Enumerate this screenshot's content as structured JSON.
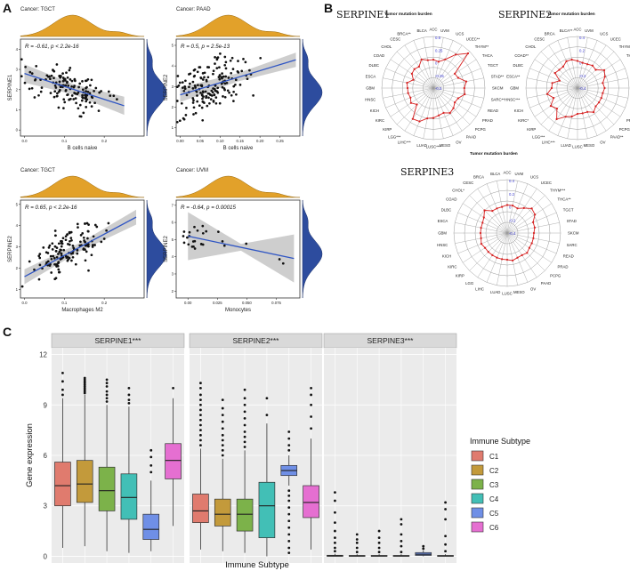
{
  "panel_labels": {
    "a": "A",
    "b": "B",
    "c": "C"
  },
  "colors": {
    "density": "#E2A12A",
    "density_side": "#2D4C9E",
    "fit": "#2F55C4",
    "band": "#BDBDBD",
    "radar_line": "#D62020",
    "radar_grid": "#9A9A9A"
  },
  "chart_data": [
    {
      "id": "scatter-tgct-bcells",
      "type": "scatter",
      "title": "Cancer: TGCT",
      "stat": "R = -0.61, p < 2.2e-16",
      "xlabel": "B cells naive",
      "ylabel": "SERPINE1",
      "xlim": [
        -0.01,
        0.3
      ],
      "ylim": [
        -0.3,
        4.5
      ],
      "xticks": [
        {
          "v": 0.0,
          "t": "0.0"
        },
        {
          "v": 0.1,
          "t": "0.1"
        },
        {
          "v": 0.2,
          "t": "0.2"
        }
      ],
      "yticks": [
        {
          "v": 0,
          "t": "0"
        },
        {
          "v": 1,
          "t": "1"
        },
        {
          "v": 2,
          "t": "2"
        },
        {
          "v": 3,
          "t": "3"
        },
        {
          "v": 4,
          "t": "4"
        }
      ],
      "fit": {
        "x": [
          0.0,
          0.25
        ],
        "y": [
          2.8,
          1.2
        ],
        "band": [
          0.25,
          0.45
        ]
      },
      "seed": 11,
      "n": 140,
      "xcenter": 0.11,
      "xspread": 0.07,
      "slope": -6.4,
      "intercept": 2.8,
      "noise": 0.7,
      "yclip": [
        0.0,
        4.1
      ]
    },
    {
      "id": "scatter-paad-bcells",
      "type": "scatter",
      "title": "Cancer: PAAD",
      "stat": "R = 0.5, p = 2.5e-13",
      "xlabel": "B cells naive",
      "ylabel": "SERPINE2",
      "xlim": [
        -0.01,
        0.3
      ],
      "ylim": [
        0.6,
        5.3
      ],
      "xticks": [
        {
          "v": 0.0,
          "t": "0.00"
        },
        {
          "v": 0.05,
          "t": "0.05"
        },
        {
          "v": 0.1,
          "t": "0.10"
        },
        {
          "v": 0.15,
          "t": "0.15"
        },
        {
          "v": 0.2,
          "t": "0.20"
        },
        {
          "v": 0.25,
          "t": "0.25"
        }
      ],
      "yticks": [
        {
          "v": 1,
          "t": "1"
        },
        {
          "v": 2,
          "t": "2"
        },
        {
          "v": 3,
          "t": "3"
        },
        {
          "v": 4,
          "t": "4"
        },
        {
          "v": 5,
          "t": "5"
        }
      ],
      "fit": {
        "x": [
          0.0,
          0.29
        ],
        "y": [
          2.6,
          4.3
        ],
        "band": [
          0.2,
          0.35
        ]
      },
      "seed": 23,
      "n": 170,
      "xcenter": 0.08,
      "xspread": 0.065,
      "slope": 6.0,
      "intercept": 2.6,
      "noise": 0.9,
      "yclip": [
        0.8,
        5.0
      ]
    },
    {
      "id": "scatter-tgct-macro",
      "type": "scatter",
      "title": "Cancer: TGCT",
      "stat": "R = 0.65, p < 2.2e-16",
      "xlabel": "Macrophages M2",
      "ylabel": "SERPINE2",
      "xlim": [
        -0.01,
        0.3
      ],
      "ylim": [
        0.6,
        5.2
      ],
      "xticks": [
        {
          "v": 0.0,
          "t": "0.0"
        },
        {
          "v": 0.1,
          "t": "0.1"
        },
        {
          "v": 0.2,
          "t": "0.2"
        }
      ],
      "yticks": [
        {
          "v": 1,
          "t": "1"
        },
        {
          "v": 2,
          "t": "2"
        },
        {
          "v": 3,
          "t": "3"
        },
        {
          "v": 4,
          "t": "4"
        },
        {
          "v": 5,
          "t": "5"
        }
      ],
      "fit": {
        "x": [
          0.0,
          0.28
        ],
        "y": [
          1.6,
          4.4
        ],
        "band": [
          0.2,
          0.35
        ]
      },
      "seed": 37,
      "n": 150,
      "xcenter": 0.1,
      "xspread": 0.06,
      "slope": 10.0,
      "intercept": 1.6,
      "noise": 0.75,
      "yclip": [
        0.8,
        5.0
      ]
    },
    {
      "id": "scatter-uvm-mono",
      "type": "scatter",
      "title": "Cancer: UVM",
      "stat": "R = -0.64, p = 0.00015",
      "xlabel": "Monocytes",
      "ylabel": "SERPINE2",
      "xlim": [
        -0.01,
        0.095
      ],
      "ylim": [
        1.6,
        7.3
      ],
      "xticks": [
        {
          "v": 0.0,
          "t": "0.00"
        },
        {
          "v": 0.025,
          "t": "0.025"
        },
        {
          "v": 0.05,
          "t": "0.050"
        },
        {
          "v": 0.075,
          "t": "0.075"
        }
      ],
      "yticks": [
        {
          "v": 2,
          "t": "2"
        },
        {
          "v": 3,
          "t": "3"
        },
        {
          "v": 4,
          "t": "4"
        },
        {
          "v": 5,
          "t": "5"
        },
        {
          "v": 6,
          "t": "6"
        },
        {
          "v": 7,
          "t": "7"
        }
      ],
      "fit": {
        "x": [
          0.0,
          0.09
        ],
        "y": [
          5.2,
          3.9
        ],
        "band": [
          0.2,
          1.4
        ]
      },
      "seed": 53,
      "n": 26,
      "xcenter": 0.008,
      "xspread": 0.012,
      "slope": -14.0,
      "intercept": 5.2,
      "noise": 0.55,
      "yclip": [
        2.0,
        6.2
      ]
    },
    {
      "id": "radar-serpine1",
      "type": "radar",
      "gene": "SERPINE1",
      "subtitle": "Tumor mutation burden",
      "rlim": [
        -0.5,
        0.5
      ],
      "rings": [
        "0.5",
        "0.25",
        "0",
        "-0.25",
        "-0.5"
      ],
      "categories": [
        "ACC",
        "UVM",
        "UCS",
        "UCEC**",
        "THYM**",
        "THCA",
        "TGCT",
        "STAD**",
        "SKCM",
        "SARC**",
        "READ",
        "PRAD",
        "PCPG",
        "PAAD",
        "OV",
        "MESO",
        "LUSC***",
        "LUAD",
        "LIHC***",
        "LGG***",
        "KIRP",
        "KIRC",
        "KICH",
        "HNSC",
        "GBM",
        "ESCA",
        "DLBC",
        "COAD",
        "CHOL",
        "CESC",
        "BRCA**",
        "BLCA"
      ],
      "values": [
        0.05,
        0.02,
        0.1,
        0.28,
        0.45,
        0.0,
        0.02,
        0.15,
        0.1,
        0.12,
        0.02,
        0.0,
        0.05,
        0.08,
        0.02,
        0.04,
        0.08,
        0.1,
        0.2,
        0.22,
        -0.05,
        0.02,
        -0.02,
        0.0,
        0.0,
        0.02,
        -0.08,
        0.0,
        0.02,
        0.0,
        0.1,
        0.05
      ]
    },
    {
      "id": "radar-serpine2",
      "type": "radar",
      "gene": "SERPINE2",
      "subtitle": "Tumor mutation burden",
      "rlim": [
        -0.4,
        0.4
      ],
      "rings": [
        "0.4",
        "0.2",
        "0",
        "-0.2",
        "-0.4"
      ],
      "categories": [
        "ACC",
        "UVM",
        "UCS",
        "UCEC",
        "THYM",
        "THCA*",
        "TGCT*",
        "STAD**",
        "SKCM",
        "SARC",
        "READ",
        "PRAD",
        "PCPG",
        "PAAD**",
        "OV",
        "MESO",
        "LUSC",
        "LUAD",
        "LIHC***",
        "LGG***",
        "KIRP",
        "KIRC*",
        "KICH",
        "HNSC***",
        "GBM",
        "ESCA**",
        "DLBC",
        "COAD**",
        "CHOL",
        "CESC",
        "BRCA",
        "BLCA**"
      ],
      "values": [
        0.02,
        0.0,
        0.0,
        0.02,
        0.0,
        0.1,
        0.06,
        0.0,
        0.02,
        0.0,
        0.0,
        0.0,
        0.0,
        0.05,
        0.0,
        0.0,
        0.0,
        0.05,
        0.08,
        0.18,
        0.05,
        0.1,
        0.0,
        0.08,
        0.0,
        0.0,
        -0.1,
        0.02,
        0.0,
        0.0,
        0.05,
        0.05
      ]
    },
    {
      "id": "radar-serpine3",
      "type": "radar",
      "gene": "SERPINE3",
      "subtitle": "Tumor mutation burden",
      "rlim": [
        -0.4,
        0.4
      ],
      "rings": [
        "0.4",
        "0.2",
        "0",
        "-0.2",
        "-0.4"
      ],
      "categories": [
        "ACC",
        "UVM",
        "UCS",
        "UCEC",
        "THYM***",
        "THCA**",
        "TGCT",
        "STAD",
        "SKCM",
        "SARC",
        "READ",
        "PRAD",
        "PCPG",
        "PAAD",
        "OV",
        "MESO",
        "LUSC",
        "LUAD",
        "LIHC",
        "LGG",
        "KIRP",
        "KIRC",
        "KICH",
        "HNSC",
        "GBM",
        "ESCA",
        "DLBC",
        "COAD",
        "CHOL*",
        "CESC",
        "BRCA",
        "BLCA"
      ],
      "values": [
        0.02,
        0.02,
        0.0,
        0.05,
        0.12,
        0.1,
        0.02,
        0.02,
        0.0,
        0.0,
        0.0,
        0.0,
        0.02,
        0.0,
        0.0,
        0.02,
        0.0,
        0.0,
        0.0,
        0.0,
        0.0,
        0.0,
        0.02,
        0.0,
        0.0,
        0.0,
        0.0,
        0.02,
        0.08,
        0.0,
        0.0,
        0.0
      ]
    },
    {
      "id": "boxplot-immune-subtype",
      "type": "box",
      "xlabel": "Immune Subtype",
      "ylabel": "Gene expression",
      "ylim": [
        -0.4,
        12.4
      ],
      "yticks": [
        0,
        3,
        6,
        9,
        12
      ],
      "categories": [
        "C1",
        "C2",
        "C3",
        "C4",
        "C5",
        "C6"
      ],
      "legend_title": "Immune Subtype",
      "legend": [
        "C1",
        "C2",
        "C3",
        "C4",
        "C5",
        "C6"
      ],
      "colors": [
        "#E07B6E",
        "#C39A3B",
        "#7CB24A",
        "#42BFB6",
        "#6F8FE6",
        "#E56FD1"
      ],
      "facets": [
        {
          "title": "SERPINE1***",
          "boxes": [
            {
              "q1": 3.0,
              "med": 4.2,
              "q3": 5.6,
              "lo": 0.5,
              "hi": 9.4,
              "outliers": [
                9.6,
                9.9,
                10.4,
                10.9
              ]
            },
            {
              "q1": 3.2,
              "med": 4.3,
              "q3": 5.7,
              "lo": 0.6,
              "hi": 9.6,
              "outliers": [
                9.7,
                9.8,
                9.9,
                10.0,
                10.1,
                10.2,
                10.3,
                10.4,
                10.5,
                10.6
              ]
            },
            {
              "q1": 2.7,
              "med": 3.9,
              "q3": 5.3,
              "lo": 0.3,
              "hi": 9.0,
              "outliers": [
                9.2,
                9.4,
                9.6,
                9.8,
                10.1,
                10.3,
                10.5
              ]
            },
            {
              "q1": 2.2,
              "med": 3.5,
              "q3": 4.9,
              "lo": 0.2,
              "hi": 8.9,
              "outliers": [
                9.1,
                9.3,
                9.6,
                10.0
              ]
            },
            {
              "q1": 1.0,
              "med": 1.6,
              "q3": 2.5,
              "lo": 0.3,
              "hi": 4.5,
              "outliers": [
                5.0,
                5.4,
                5.9,
                6.3
              ]
            },
            {
              "q1": 4.6,
              "med": 5.7,
              "q3": 6.7,
              "lo": 1.8,
              "hi": 9.4,
              "outliers": [
                10.0
              ]
            }
          ]
        },
        {
          "title": "SERPINE2***",
          "boxes": [
            {
              "q1": 2.0,
              "med": 2.7,
              "q3": 3.7,
              "lo": 0.4,
              "hi": 6.4,
              "outliers": [
                6.6,
                6.9,
                7.2,
                7.5,
                7.8,
                8.1,
                8.4,
                8.7,
                9.0,
                9.3,
                9.6,
                10.0,
                10.3
              ]
            },
            {
              "q1": 1.8,
              "med": 2.5,
              "q3": 3.4,
              "lo": 0.3,
              "hi": 5.8,
              "outliers": [
                6.0,
                6.3,
                6.6,
                6.9,
                7.2,
                7.6,
                8.0,
                8.4,
                8.8,
                9.3
              ]
            },
            {
              "q1": 1.5,
              "med": 2.5,
              "q3": 3.4,
              "lo": 0.2,
              "hi": 6.3,
              "outliers": [
                6.5,
                6.8,
                7.1,
                7.4,
                7.8,
                8.2,
                8.6,
                9.0,
                9.4,
                9.9
              ]
            },
            {
              "q1": 1.1,
              "med": 3.0,
              "q3": 4.4,
              "lo": 0.0,
              "hi": 7.9,
              "outliers": [
                8.4,
                9.4
              ]
            },
            {
              "q1": 4.8,
              "med": 5.1,
              "q3": 5.4,
              "lo": 4.2,
              "hi": 6.0,
              "outliers": [
                0.2,
                0.5,
                0.9,
                1.3,
                1.7,
                2.1,
                2.5,
                2.9,
                3.3,
                3.6,
                3.9,
                6.3,
                6.6,
                7.0,
                7.4
              ]
            },
            {
              "q1": 2.3,
              "med": 3.2,
              "q3": 4.2,
              "lo": 0.4,
              "hi": 7.0,
              "outliers": [
                7.6,
                8.3,
                9.0,
                9.6,
                10.0
              ]
            }
          ]
        },
        {
          "title": "SERPINE3***",
          "boxes": [
            {
              "q1": 0.0,
              "med": 0.02,
              "q3": 0.06,
              "lo": 0.0,
              "hi": 0.15,
              "outliers": [
                0.3,
                0.5,
                0.8,
                1.1,
                1.5,
                2.0,
                2.6,
                3.3,
                3.8
              ]
            },
            {
              "q1": 0.0,
              "med": 0.02,
              "q3": 0.05,
              "lo": 0.0,
              "hi": 0.12,
              "outliers": [
                0.25,
                0.5,
                0.8,
                1.0,
                1.3
              ]
            },
            {
              "q1": 0.0,
              "med": 0.02,
              "q3": 0.05,
              "lo": 0.0,
              "hi": 0.12,
              "outliers": [
                0.25,
                0.5,
                0.8,
                1.1,
                1.5
              ]
            },
            {
              "q1": 0.0,
              "med": 0.02,
              "q3": 0.05,
              "lo": 0.0,
              "hi": 0.12,
              "outliers": [
                0.25,
                0.6,
                0.9,
                1.3,
                1.9,
                2.2
              ]
            },
            {
              "q1": 0.05,
              "med": 0.12,
              "q3": 0.22,
              "lo": 0.0,
              "hi": 0.35,
              "outliers": [
                0.45,
                0.6
              ]
            },
            {
              "q1": 0.0,
              "med": 0.02,
              "q3": 0.05,
              "lo": 0.0,
              "hi": 0.12,
              "outliers": [
                0.3,
                0.7,
                1.2,
                2.2,
                2.8,
                3.2
              ]
            }
          ]
        }
      ]
    }
  ]
}
